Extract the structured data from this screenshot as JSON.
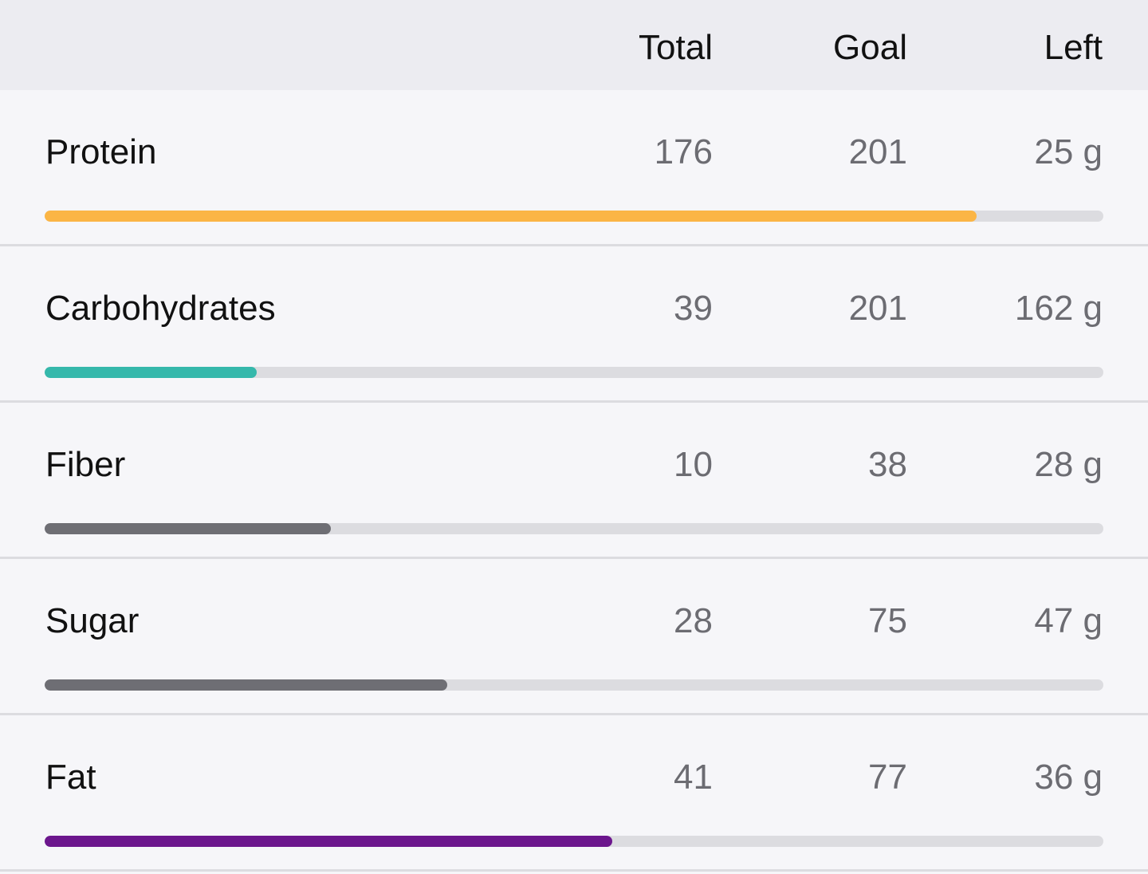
{
  "header": {
    "total_label": "Total",
    "goal_label": "Goal",
    "left_label": "Left"
  },
  "nutrients": [
    {
      "name": "Protein",
      "total": "176",
      "goal": "201",
      "left": "25 g",
      "progress": 0.88,
      "color": "#fbb545"
    },
    {
      "name": "Carbohydrates",
      "total": "39",
      "goal": "201",
      "left": "162 g",
      "progress": 0.2,
      "color": "#35b8ab"
    },
    {
      "name": "Fiber",
      "total": "10",
      "goal": "38",
      "left": "28 g",
      "progress": 0.27,
      "color": "#6e6e74"
    },
    {
      "name": "Sugar",
      "total": "28",
      "goal": "75",
      "left": "47 g",
      "progress": 0.38,
      "color": "#6e6e74"
    },
    {
      "name": "Fat",
      "total": "41",
      "goal": "77",
      "left": "36 g",
      "progress": 0.536,
      "color": "#6c168d"
    }
  ]
}
